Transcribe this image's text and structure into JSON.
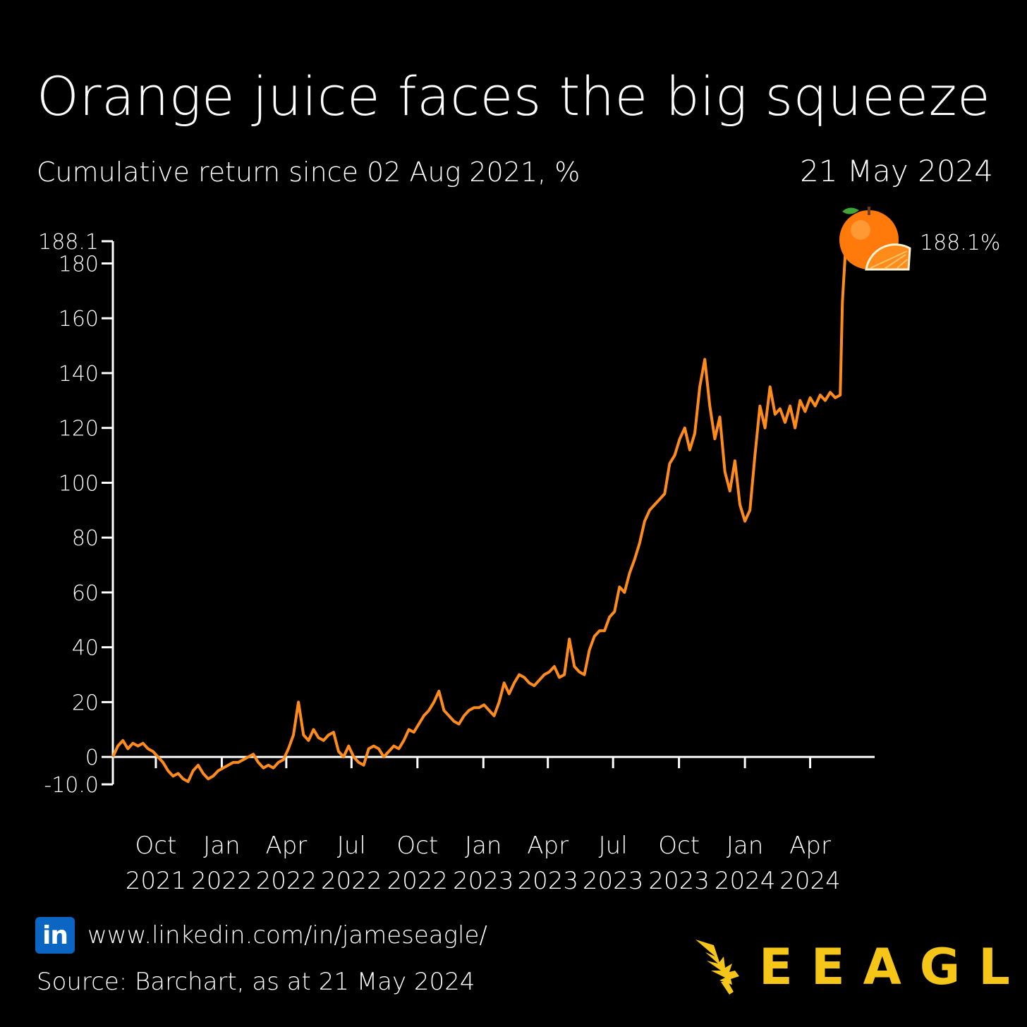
{
  "header": {
    "title": "Orange juice faces the big squeeze",
    "subtitle": "Cumulative return since 02 Aug 2021, %",
    "date": "21 May 2024"
  },
  "end_label": "188.1%",
  "footer": {
    "linkedin_icon_text": "in",
    "linkedin_url": "www.linkedin.com/in/jameseagle/",
    "source": "Source: Barchart, as at 21 May 2024",
    "brand": "EEAGLI"
  },
  "colors": {
    "background": "#000000",
    "line": "#ff8c1a",
    "axis": "#ffffff",
    "brand": "#f5c518",
    "linkedin": "#0a66c2"
  },
  "icons": [
    "orange-fruit-icon",
    "linkedin-icon",
    "eagle-logo-icon"
  ],
  "chart_data": {
    "type": "line",
    "title": "Orange juice faces the big squeeze",
    "subtitle": "Cumulative return since 02 Aug 2021, %",
    "ylim": [
      -10.0,
      188.1
    ],
    "yticks": [
      {
        "value": 188.1,
        "label": "188.1"
      },
      {
        "value": 180,
        "label": "180"
      },
      {
        "value": 160,
        "label": "160"
      },
      {
        "value": 140,
        "label": "140"
      },
      {
        "value": 120,
        "label": "120"
      },
      {
        "value": 100,
        "label": "100"
      },
      {
        "value": 80,
        "label": "80"
      },
      {
        "value": 60,
        "label": "60"
      },
      {
        "value": 40,
        "label": "40"
      },
      {
        "value": 20,
        "label": "20"
      },
      {
        "value": 0,
        "label": "0"
      },
      {
        "value": -10.0,
        "label": "-10.0"
      }
    ],
    "xlim": [
      "2021-08-02",
      "2024-06-30"
    ],
    "xticks": [
      {
        "date": "2021-10-01",
        "line1": "Oct",
        "line2": "2021"
      },
      {
        "date": "2022-01-01",
        "line1": "Jan",
        "line2": "2022"
      },
      {
        "date": "2022-04-01",
        "line1": "Apr",
        "line2": "2022"
      },
      {
        "date": "2022-07-01",
        "line1": "Jul",
        "line2": "2022"
      },
      {
        "date": "2022-10-01",
        "line1": "Oct",
        "line2": "2022"
      },
      {
        "date": "2023-01-01",
        "line1": "Jan",
        "line2": "2023"
      },
      {
        "date": "2023-04-01",
        "line1": "Apr",
        "line2": "2023"
      },
      {
        "date": "2023-07-01",
        "line1": "Jul",
        "line2": "2023"
      },
      {
        "date": "2023-10-01",
        "line1": "Oct",
        "line2": "2023"
      },
      {
        "date": "2024-01-01",
        "line1": "Jan",
        "line2": "2024"
      },
      {
        "date": "2024-04-01",
        "line1": "Apr",
        "line2": "2024"
      }
    ],
    "series": [
      {
        "name": "",
        "points": [
          [
            "2021-08-02",
            0
          ],
          [
            "2021-08-09",
            4
          ],
          [
            "2021-08-16",
            6
          ],
          [
            "2021-08-23",
            3
          ],
          [
            "2021-08-30",
            5
          ],
          [
            "2021-09-06",
            4
          ],
          [
            "2021-09-13",
            5
          ],
          [
            "2021-09-20",
            3
          ],
          [
            "2021-09-27",
            2
          ],
          [
            "2021-10-04",
            0
          ],
          [
            "2021-10-11",
            -2
          ],
          [
            "2021-10-18",
            -5
          ],
          [
            "2021-10-25",
            -7
          ],
          [
            "2021-11-01",
            -6
          ],
          [
            "2021-11-08",
            -8
          ],
          [
            "2021-11-15",
            -9
          ],
          [
            "2021-11-22",
            -5
          ],
          [
            "2021-11-29",
            -3
          ],
          [
            "2021-12-06",
            -6
          ],
          [
            "2021-12-13",
            -8
          ],
          [
            "2021-12-20",
            -7
          ],
          [
            "2021-12-27",
            -5
          ],
          [
            "2022-01-03",
            -4
          ],
          [
            "2022-01-10",
            -3
          ],
          [
            "2022-01-17",
            -2
          ],
          [
            "2022-01-24",
            -2
          ],
          [
            "2022-01-31",
            -1
          ],
          [
            "2022-02-07",
            0
          ],
          [
            "2022-02-14",
            1
          ],
          [
            "2022-02-21",
            -2
          ],
          [
            "2022-02-28",
            -4
          ],
          [
            "2022-03-07",
            -3
          ],
          [
            "2022-03-14",
            -4
          ],
          [
            "2022-03-21",
            -2
          ],
          [
            "2022-03-28",
            -1
          ],
          [
            "2022-04-04",
            3
          ],
          [
            "2022-04-11",
            8
          ],
          [
            "2022-04-18",
            20
          ],
          [
            "2022-04-25",
            8
          ],
          [
            "2022-05-02",
            6
          ],
          [
            "2022-05-09",
            10
          ],
          [
            "2022-05-16",
            7
          ],
          [
            "2022-05-23",
            6
          ],
          [
            "2022-05-30",
            8
          ],
          [
            "2022-06-06",
            9
          ],
          [
            "2022-06-13",
            2
          ],
          [
            "2022-06-20",
            0
          ],
          [
            "2022-06-27",
            4
          ],
          [
            "2022-07-04",
            0
          ],
          [
            "2022-07-11",
            -2
          ],
          [
            "2022-07-18",
            -3
          ],
          [
            "2022-07-25",
            3
          ],
          [
            "2022-08-01",
            4
          ],
          [
            "2022-08-08",
            3
          ],
          [
            "2022-08-15",
            0
          ],
          [
            "2022-08-22",
            2
          ],
          [
            "2022-08-29",
            4
          ],
          [
            "2022-09-05",
            3
          ],
          [
            "2022-09-12",
            6
          ],
          [
            "2022-09-19",
            10
          ],
          [
            "2022-09-26",
            9
          ],
          [
            "2022-10-03",
            12
          ],
          [
            "2022-10-10",
            15
          ],
          [
            "2022-10-17",
            17
          ],
          [
            "2022-10-24",
            20
          ],
          [
            "2022-10-31",
            24
          ],
          [
            "2022-11-07",
            17
          ],
          [
            "2022-11-14",
            15
          ],
          [
            "2022-11-21",
            13
          ],
          [
            "2022-11-28",
            12
          ],
          [
            "2022-12-05",
            15
          ],
          [
            "2022-12-12",
            17
          ],
          [
            "2022-12-19",
            18
          ],
          [
            "2022-12-26",
            18
          ],
          [
            "2023-01-02",
            19
          ],
          [
            "2023-01-09",
            17
          ],
          [
            "2023-01-16",
            15
          ],
          [
            "2023-01-23",
            20
          ],
          [
            "2023-01-30",
            27
          ],
          [
            "2023-02-06",
            23
          ],
          [
            "2023-02-13",
            27
          ],
          [
            "2023-02-20",
            30
          ],
          [
            "2023-02-27",
            29
          ],
          [
            "2023-03-06",
            27
          ],
          [
            "2023-03-13",
            26
          ],
          [
            "2023-03-20",
            28
          ],
          [
            "2023-03-27",
            30
          ],
          [
            "2023-04-03",
            31
          ],
          [
            "2023-04-10",
            33
          ],
          [
            "2023-04-17",
            29
          ],
          [
            "2023-04-24",
            30
          ],
          [
            "2023-05-01",
            43
          ],
          [
            "2023-05-08",
            33
          ],
          [
            "2023-05-15",
            31
          ],
          [
            "2023-05-22",
            30
          ],
          [
            "2023-05-29",
            39
          ],
          [
            "2023-06-05",
            44
          ],
          [
            "2023-06-12",
            46
          ],
          [
            "2023-06-19",
            46
          ],
          [
            "2023-06-26",
            51
          ],
          [
            "2023-07-03",
            53
          ],
          [
            "2023-07-10",
            62
          ],
          [
            "2023-07-17",
            60
          ],
          [
            "2023-07-24",
            67
          ],
          [
            "2023-07-31",
            72
          ],
          [
            "2023-08-07",
            78
          ],
          [
            "2023-08-14",
            86
          ],
          [
            "2023-08-21",
            90
          ],
          [
            "2023-08-28",
            92
          ],
          [
            "2023-09-04",
            94
          ],
          [
            "2023-09-11",
            96
          ],
          [
            "2023-09-18",
            107
          ],
          [
            "2023-09-25",
            110
          ],
          [
            "2023-10-02",
            116
          ],
          [
            "2023-10-09",
            120
          ],
          [
            "2023-10-16",
            112
          ],
          [
            "2023-10-23",
            118
          ],
          [
            "2023-10-30",
            135
          ],
          [
            "2023-11-06",
            145
          ],
          [
            "2023-11-13",
            128
          ],
          [
            "2023-11-20",
            116
          ],
          [
            "2023-11-27",
            124
          ],
          [
            "2023-12-04",
            104
          ],
          [
            "2023-12-11",
            97
          ],
          [
            "2023-12-18",
            108
          ],
          [
            "2023-12-25",
            92
          ],
          [
            "2024-01-01",
            86
          ],
          [
            "2024-01-08",
            90
          ],
          [
            "2024-01-15",
            110
          ],
          [
            "2024-01-22",
            128
          ],
          [
            "2024-01-29",
            120
          ],
          [
            "2024-02-05",
            135
          ],
          [
            "2024-02-12",
            125
          ],
          [
            "2024-02-19",
            127
          ],
          [
            "2024-02-26",
            122
          ],
          [
            "2024-03-04",
            128
          ],
          [
            "2024-03-11",
            120
          ],
          [
            "2024-03-18",
            130
          ],
          [
            "2024-03-25",
            126
          ],
          [
            "2024-04-01",
            131
          ],
          [
            "2024-04-08",
            128
          ],
          [
            "2024-04-15",
            132
          ],
          [
            "2024-04-22",
            130
          ],
          [
            "2024-04-29",
            133
          ],
          [
            "2024-05-06",
            131
          ],
          [
            "2024-05-13",
            132
          ],
          [
            "2024-05-16",
            166
          ],
          [
            "2024-05-21",
            188.1
          ]
        ]
      }
    ],
    "annotations": [
      {
        "date": "2024-05-21",
        "value": 188.1,
        "text": "188.1%"
      }
    ],
    "grid": false,
    "legend": "none"
  }
}
